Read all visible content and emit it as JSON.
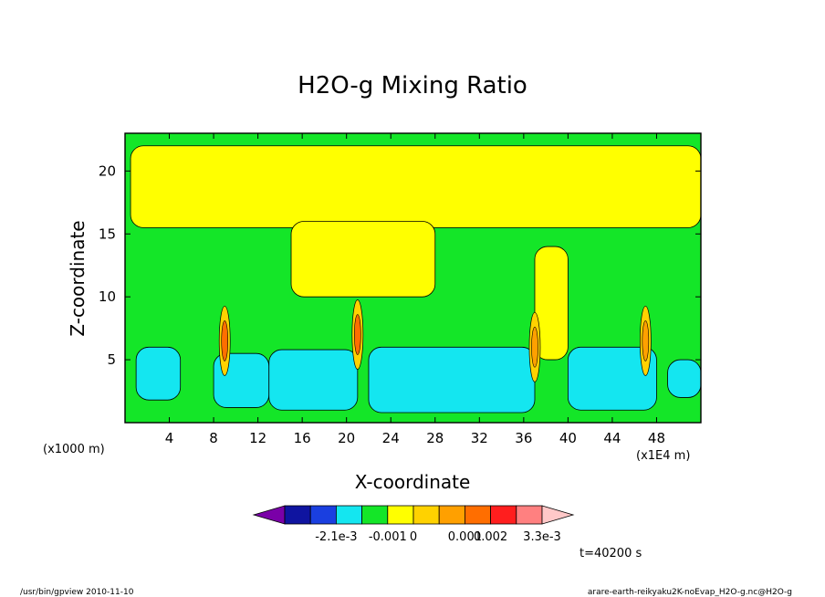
{
  "chart_data": {
    "type": "heatmap",
    "title": "H2O-g Mixing Ratio",
    "xlabel": "X-coordinate",
    "ylabel": "Z-coordinate",
    "x_unit_left": "(x1000 m)",
    "x_unit_right": "(x1E4 m)",
    "xlim": [
      0,
      52
    ],
    "ylim": [
      0,
      23
    ],
    "xticks": [
      4,
      8,
      12,
      16,
      20,
      24,
      28,
      32,
      36,
      40,
      44,
      48
    ],
    "yticks": [
      5,
      10,
      15,
      20
    ],
    "colorbar": {
      "colors": [
        "#7a00a8",
        "#0f14a0",
        "#1a3fe0",
        "#14e6f0",
        "#14e628",
        "#ffff00",
        "#ffd200",
        "#ffa000",
        "#ff6e00",
        "#ff1e1e",
        "#ff8080",
        "#ffc8c8"
      ],
      "labels": [
        "-2.1e-3",
        "-0.001",
        "0",
        "0.001",
        "0.002",
        "3.3e-3"
      ],
      "label_after_box": [
        2,
        4,
        5,
        7,
        8,
        10
      ]
    },
    "regions": [
      {
        "level": "-0.001..0",
        "color": "#14e6f0",
        "x": [
          1,
          5
        ],
        "z": [
          1.8,
          6
        ]
      },
      {
        "level": "-0.001..0",
        "color": "#14e6f0",
        "x": [
          8,
          13
        ],
        "z": [
          1.2,
          5.5
        ]
      },
      {
        "level": "-0.001..0",
        "color": "#14e6f0",
        "x": [
          13,
          21
        ],
        "z": [
          1,
          5.8
        ]
      },
      {
        "level": "-0.001..0",
        "color": "#14e6f0",
        "x": [
          22,
          37
        ],
        "z": [
          0.8,
          6
        ]
      },
      {
        "level": "-0.001..0",
        "color": "#14e6f0",
        "x": [
          40,
          48
        ],
        "z": [
          1,
          6
        ]
      },
      {
        "level": "-0.001..0",
        "color": "#14e6f0",
        "x": [
          49,
          52
        ],
        "z": [
          2,
          5
        ]
      },
      {
        "level": "0..0.001",
        "color": "#ffff00",
        "x": [
          0.5,
          52
        ],
        "z": [
          15.5,
          22
        ]
      },
      {
        "level": "0..0.001",
        "color": "#ffff00",
        "x": [
          15,
          28
        ],
        "z": [
          10,
          16
        ]
      },
      {
        "level": "0..0.001",
        "color": "#ffff00",
        "x": [
          37,
          40
        ],
        "z": [
          5,
          14
        ]
      }
    ],
    "maxima": [
      {
        "x": 9,
        "z": 6.5,
        "level": "0.002..3.3e-3"
      },
      {
        "x": 21,
        "z": 7,
        "level": "0.002..3.3e-3"
      },
      {
        "x": 37,
        "z": 6,
        "level": "0.001..0.002"
      },
      {
        "x": 47,
        "z": 6.5,
        "level": "0.001..0.002"
      }
    ]
  },
  "footer": {
    "left": "/usr/bin/gpview   2010-11-10",
    "right": "arare-earth-reikyaku2K-noEvap_H2O-g.nc@H2O-g",
    "time": "t=40200 s"
  }
}
